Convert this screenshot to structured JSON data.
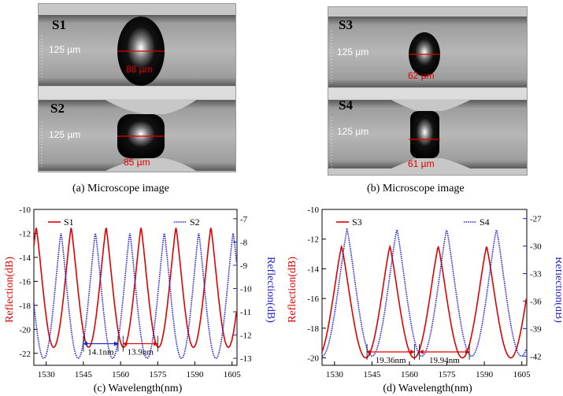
{
  "micro_a": {
    "s1_label": "S1",
    "s2_label": "S2",
    "s1_width": "125 µm",
    "s2_width": "125 µm",
    "s1_diam": "88 µm",
    "s2_diam": "85 µm",
    "caption": "(a)   Microscope image"
  },
  "micro_b": {
    "s3_label": "S3",
    "s4_label": "S4",
    "s3_width": "125 µm",
    "s4_width": "125 µm",
    "s3_diam": "62 µm",
    "s4_diam": "61 µm",
    "caption": "(b)   Microscope image"
  },
  "colors": {
    "red": "#e00000",
    "blue": "#1f1fd0"
  },
  "chart_data": [
    {
      "type": "line",
      "caption": "(c)   Wavelength(nm)",
      "ylabel_left": "Reflection(dB)",
      "ylabel_right": "Reflection(dB)",
      "xlim": [
        1525,
        1607
      ],
      "ylim_left": [
        -23,
        -10
      ],
      "ylim_right": [
        -13.3,
        -6.6
      ],
      "xticks": [
        1530,
        1545,
        1560,
        1575,
        1590,
        1605
      ],
      "yticks_left": [
        -10,
        -12,
        -14,
        -16,
        -18,
        -20,
        -22
      ],
      "yticks_right": [
        -7,
        -8,
        -9,
        -10,
        -11,
        -12,
        -13
      ],
      "series": [
        {
          "name": "S1",
          "axis": "left",
          "style": "solid",
          "period": 14.1,
          "phase": 1533,
          "min": -21.5,
          "max": -11.5
        },
        {
          "name": "S2",
          "axis": "right",
          "style": "dotted",
          "period": 13.9,
          "phase": 1529,
          "min": -13,
          "max": -7.6
        }
      ],
      "annotations": [
        {
          "text": "14.1nm",
          "x1": 1545,
          "x2": 1559,
          "y": -21.2,
          "color": "blue"
        },
        {
          "text": "13.9nm",
          "x1": 1561,
          "x2": 1575,
          "y": -21.2,
          "color": "red"
        }
      ]
    },
    {
      "type": "line",
      "caption": "(d)   Wavelength(nm)",
      "ylabel_left": "Reflection(dB)",
      "ylabel_right": "Reflection(dB)",
      "xlim": [
        1525,
        1607
      ],
      "ylim_left": [
        -20.5,
        -10
      ],
      "ylim_right": [
        -43,
        -26
      ],
      "xticks": [
        1530,
        1545,
        1560,
        1575,
        1590,
        1605
      ],
      "yticks_left": [
        -10,
        -12,
        -14,
        -16,
        -18,
        -20
      ],
      "yticks_right": [
        -27,
        -30,
        -33,
        -36,
        -39,
        -42
      ],
      "series": [
        {
          "name": "S3",
          "axis": "left",
          "style": "solid",
          "period": 19.36,
          "phase": 1542.5,
          "min": -20,
          "max": -12.5
        },
        {
          "name": "S4",
          "axis": "right",
          "style": "dotted",
          "period": 19.94,
          "phase": 1545,
          "min": -42,
          "max": -28.2
        }
      ],
      "annotations": [
        {
          "text": "19.36nm",
          "x1": 1543,
          "x2": 1562,
          "y": -19.6,
          "color": "red"
        },
        {
          "text": "19.94nm",
          "x1": 1564,
          "x2": 1584,
          "y": -19.6,
          "color": "red"
        }
      ]
    }
  ]
}
